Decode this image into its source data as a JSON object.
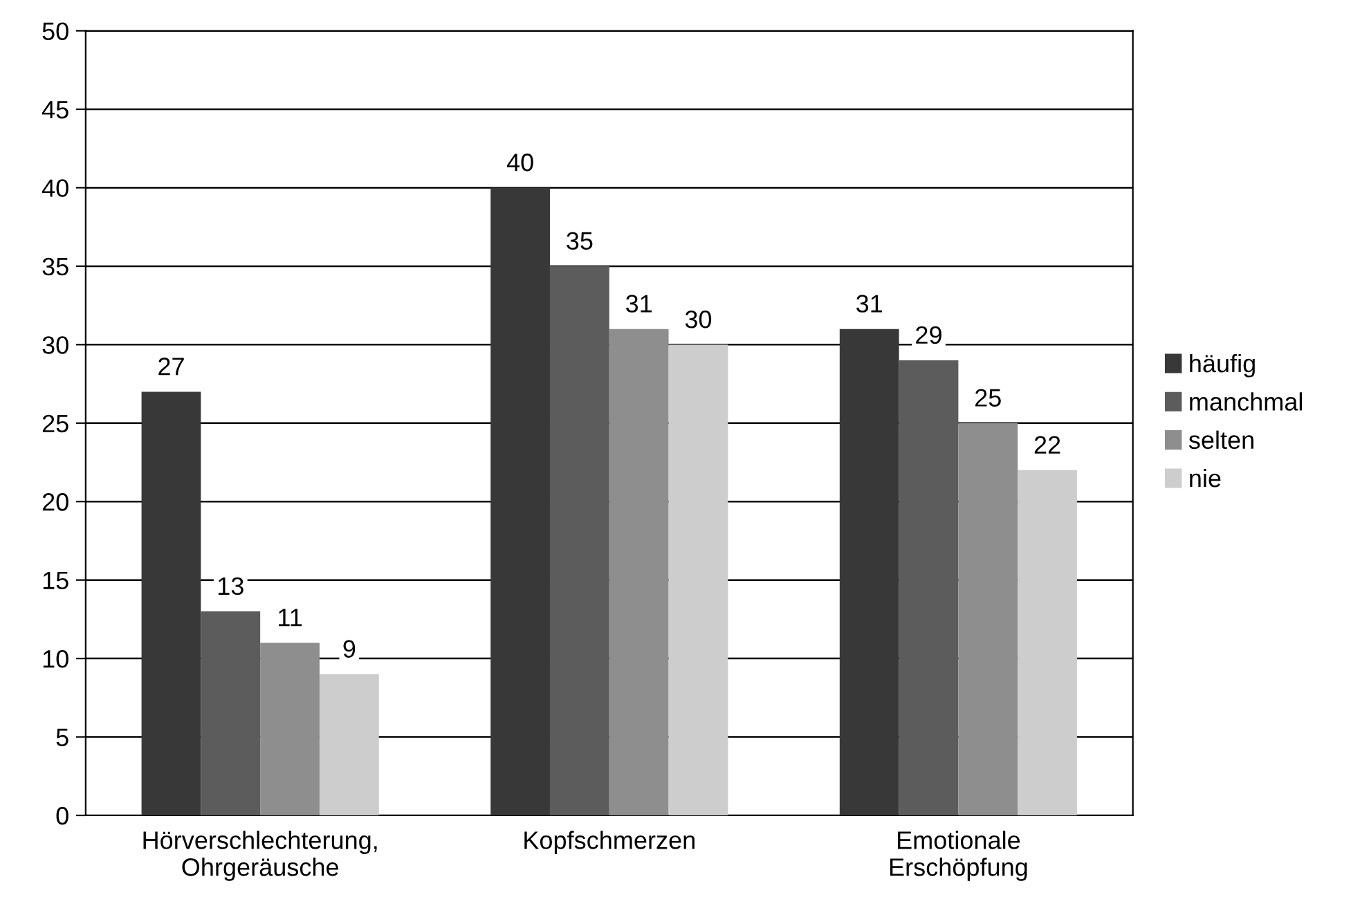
{
  "chart_data": {
    "type": "bar",
    "categories": [
      "Hörverschlechterung,\nOhrgeräusche",
      "Kopfschmerzen",
      "Emotionale\nErschöpfung"
    ],
    "series": [
      {
        "name": "häufig",
        "color": "#383838",
        "values": [
          27,
          40,
          31
        ]
      },
      {
        "name": "manchmal",
        "color": "#5c5c5c",
        "values": [
          13,
          35,
          29
        ]
      },
      {
        "name": "selten",
        "color": "#8e8e8e",
        "values": [
          11,
          31,
          25
        ]
      },
      {
        "name": "nie",
        "color": "#cdcdcd",
        "values": [
          9,
          30,
          22
        ]
      }
    ],
    "ylim": [
      0,
      50
    ],
    "yticks": [
      0,
      5,
      10,
      15,
      20,
      25,
      30,
      35,
      40,
      45,
      50
    ],
    "grid": "y",
    "legend": "right",
    "data_labels": true
  }
}
